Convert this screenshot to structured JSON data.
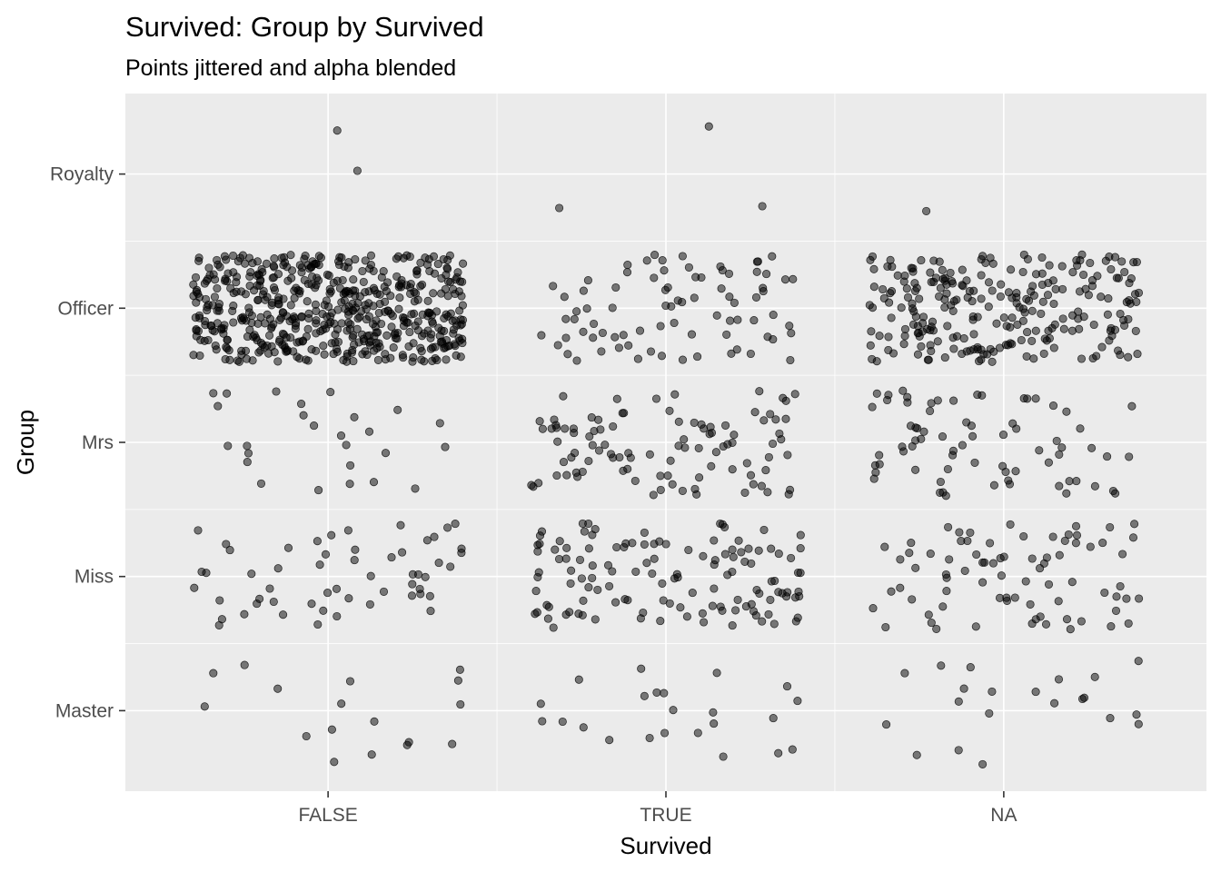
{
  "chart_data": {
    "type": "scatter",
    "title": "Survived: Group by Survived",
    "subtitle": "Points jittered and alpha blended",
    "xlabel": "Survived",
    "ylabel": "Group",
    "x_categories": [
      "FALSE",
      "TRUE",
      "NA"
    ],
    "y_categories": [
      "Master",
      "Miss",
      "Mrs",
      "Officer",
      "Royalty"
    ],
    "jitter": {
      "x": 0.4,
      "y": 0.4
    },
    "point_alpha": 0.5,
    "point_color": "#000000",
    "panel_background": "#ebebeb",
    "grid_color": "#ffffff",
    "grid": true,
    "legend": "none",
    "counts": [
      {
        "x": "FALSE",
        "y": "Royalty",
        "n": 2
      },
      {
        "x": "FALSE",
        "y": "Officer",
        "n": 540
      },
      {
        "x": "FALSE",
        "y": "Mrs",
        "n": 26
      },
      {
        "x": "FALSE",
        "y": "Miss",
        "n": 55
      },
      {
        "x": "FALSE",
        "y": "Master",
        "n": 17
      },
      {
        "x": "TRUE",
        "y": "Royalty",
        "n": 3
      },
      {
        "x": "TRUE",
        "y": "Officer",
        "n": 81
      },
      {
        "x": "TRUE",
        "y": "Mrs",
        "n": 99
      },
      {
        "x": "TRUE",
        "y": "Miss",
        "n": 127
      },
      {
        "x": "TRUE",
        "y": "Master",
        "n": 23
      },
      {
        "x": "NA",
        "y": "Royalty",
        "n": 1
      },
      {
        "x": "NA",
        "y": "Officer",
        "n": 250
      },
      {
        "x": "NA",
        "y": "Mrs",
        "n": 72
      },
      {
        "x": "NA",
        "y": "Miss",
        "n": 78
      },
      {
        "x": "NA",
        "y": "Master",
        "n": 21
      }
    ]
  }
}
